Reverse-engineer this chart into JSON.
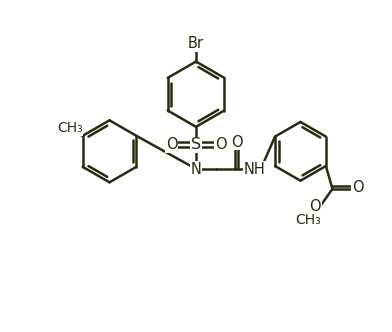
{
  "background": "#ffffff",
  "line_color": "#2a2a10",
  "bond_lw": 1.8,
  "font_size": 10.5,
  "figsize": [
    3.92,
    3.32
  ],
  "dpi": 100,
  "br_label": "Br",
  "s_label": "S",
  "n_label": "N",
  "nh_label": "NH",
  "o_label": "O",
  "ch3_label": "CH₃",
  "methyl_label": "CH₃"
}
